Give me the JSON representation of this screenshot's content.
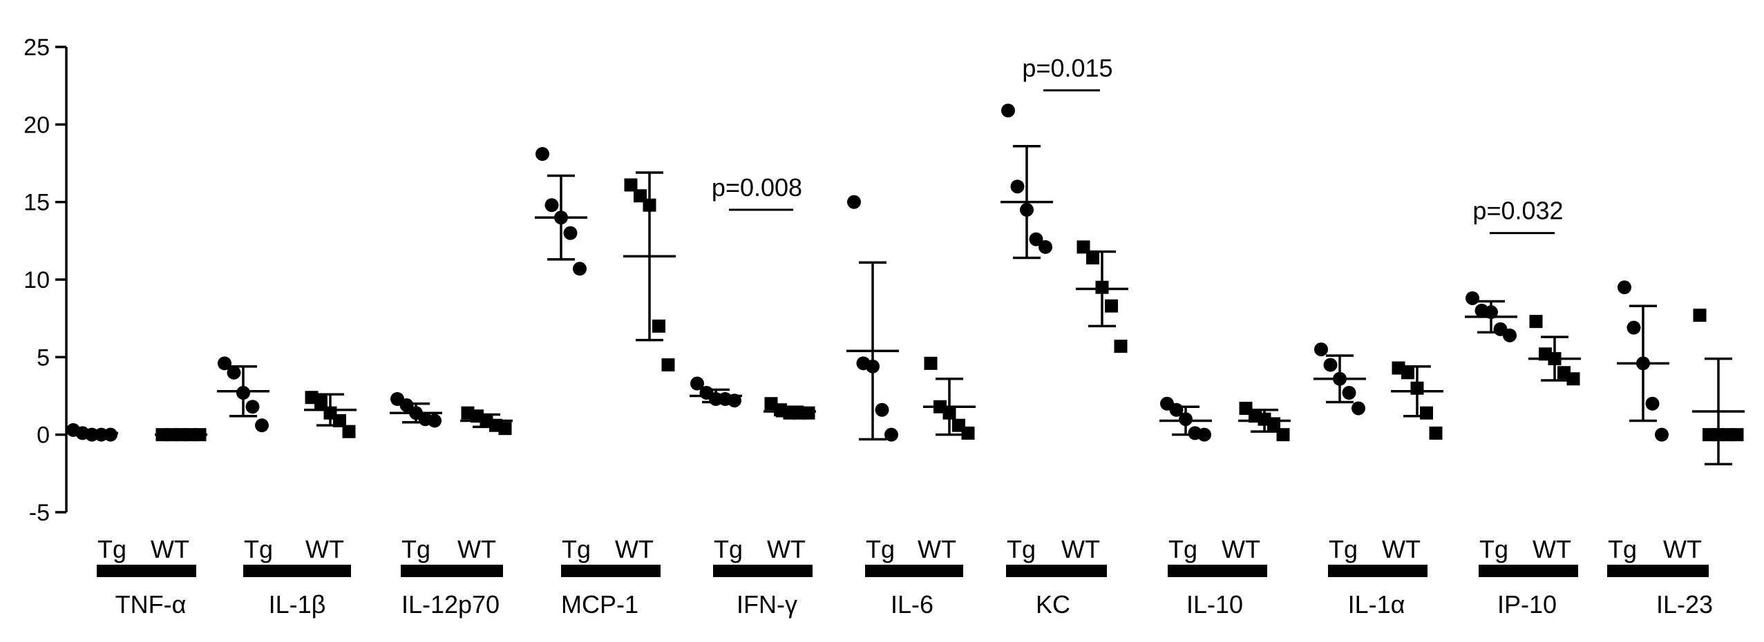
{
  "chart_data": {
    "type": "scatter",
    "ylim": [
      -5,
      25
    ],
    "yticks": [
      -5,
      0,
      5,
      10,
      15,
      20,
      25
    ],
    "groups": [
      "Tg",
      "WT"
    ],
    "cytokines": [
      {
        "name": "TNF-α",
        "Tg": {
          "points": [
            0.3,
            0.1,
            0.0,
            0.0,
            0.0
          ],
          "mean": 0.1,
          "sd": 0.15
        },
        "WT": {
          "points": [
            0.0,
            0.0,
            0.0,
            0.0,
            0.0
          ],
          "mean": 0.0,
          "sd": 0.1
        }
      },
      {
        "name": "IL-1β",
        "Tg": {
          "points": [
            4.6,
            4.0,
            2.7,
            1.8,
            0.6
          ],
          "mean": 2.8,
          "sd": 1.6
        },
        "WT": {
          "points": [
            2.4,
            2.1,
            1.4,
            0.9,
            0.2
          ],
          "mean": 1.6,
          "sd": 1.0
        }
      },
      {
        "name": "IL-12p70",
        "Tg": {
          "points": [
            2.3,
            1.9,
            1.4,
            1.0,
            0.9
          ],
          "mean": 1.4,
          "sd": 0.6
        },
        "WT": {
          "points": [
            1.4,
            1.2,
            0.9,
            0.6,
            0.4
          ],
          "mean": 0.9,
          "sd": 0.4
        }
      },
      {
        "name": "MCP-1",
        "Tg": {
          "points": [
            18.1,
            14.8,
            14.0,
            13.0,
            10.7
          ],
          "mean": 14.0,
          "sd": 2.7
        },
        "WT": {
          "points": [
            16.1,
            15.4,
            14.8,
            7.0,
            4.5
          ],
          "mean": 11.5,
          "sd": 5.4
        }
      },
      {
        "name": "IFN-γ",
        "Tg": {
          "points": [
            3.3,
            2.7,
            2.3,
            2.3,
            2.2
          ],
          "mean": 2.5,
          "sd": 0.4
        },
        "WT": {
          "points": [
            2.0,
            1.6,
            1.4,
            1.4,
            1.4
          ],
          "mean": 1.5,
          "sd": 0.3
        }
      },
      {
        "name": "IL-6",
        "Tg": {
          "points": [
            15.0,
            4.6,
            4.4,
            1.6,
            0.0
          ],
          "mean": 5.4,
          "sd": 5.7
        },
        "WT": {
          "points": [
            4.6,
            1.8,
            1.4,
            0.6,
            0.1
          ],
          "mean": 1.8,
          "sd": 1.8
        }
      },
      {
        "name": "KC",
        "Tg": {
          "points": [
            20.9,
            16.0,
            14.5,
            12.6,
            12.1
          ],
          "mean": 15.0,
          "sd": 3.6
        },
        "WT": {
          "points": [
            12.1,
            11.4,
            9.5,
            8.3,
            5.7
          ],
          "mean": 9.4,
          "sd": 2.4
        }
      },
      {
        "name": "IL-10",
        "Tg": {
          "points": [
            2.0,
            1.6,
            1.0,
            0.1,
            0.0
          ],
          "mean": 0.9,
          "sd": 0.9
        },
        "WT": {
          "points": [
            1.7,
            1.2,
            1.0,
            0.7,
            0.0
          ],
          "mean": 0.9,
          "sd": 0.7
        }
      },
      {
        "name": "IL-1α",
        "Tg": {
          "points": [
            5.5,
            4.5,
            3.6,
            2.7,
            1.7
          ],
          "mean": 3.6,
          "sd": 1.5
        },
        "WT": {
          "points": [
            4.3,
            4.0,
            3.0,
            1.4,
            0.1
          ],
          "mean": 2.8,
          "sd": 1.6
        }
      },
      {
        "name": "IP-10",
        "Tg": {
          "points": [
            8.8,
            8.0,
            7.9,
            6.8,
            6.4
          ],
          "mean": 7.6,
          "sd": 1.0
        },
        "WT": {
          "points": [
            7.3,
            5.2,
            4.9,
            4.0,
            3.6
          ],
          "mean": 4.9,
          "sd": 1.4
        }
      },
      {
        "name": "IL-23",
        "Tg": {
          "points": [
            9.5,
            6.9,
            4.6,
            2.0,
            0.0
          ],
          "mean": 4.6,
          "sd": 3.7
        },
        "WT": {
          "points": [
            7.7,
            0.0,
            0.0,
            0.0,
            0.0
          ],
          "mean": 1.5,
          "sd": 3.4
        }
      }
    ],
    "annotations": [
      {
        "text": "p=0.008",
        "cytokine": "IFN-γ",
        "y": 14.5
      },
      {
        "text": "p=0.015",
        "cytokine": "KC",
        "y": 22.2
      },
      {
        "text": "p=0.032",
        "cytokine": "IP-10",
        "y": 13.0
      }
    ]
  }
}
